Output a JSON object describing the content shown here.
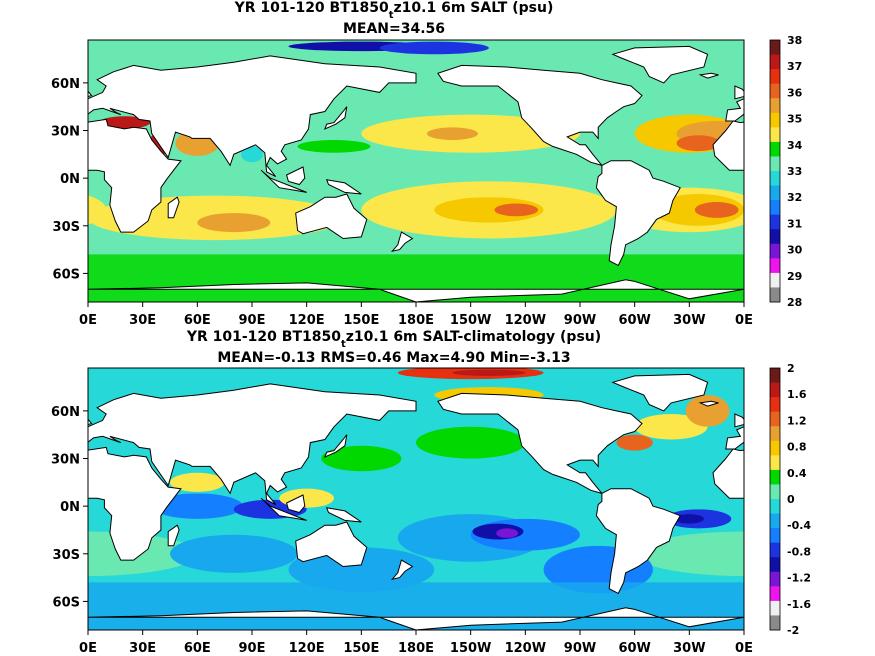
{
  "chart_data": [
    {
      "type": "heatmap",
      "title_prefix": "YR 101-120 BT1850",
      "title_subscript": "t",
      "title_suffix": "z10.1 6m SALT (psu)",
      "stats": "MEAN=34.56",
      "x_ticks": [
        "0E",
        "30E",
        "60E",
        "90E",
        "120E",
        "150E",
        "180E",
        "150W",
        "120W",
        "90W",
        "60W",
        "30W",
        "0E"
      ],
      "y_ticks": [
        "60N",
        "30N",
        "0N",
        "30S",
        "60S"
      ],
      "y_tick_lat": [
        60,
        30,
        0,
        -30,
        -60
      ],
      "xlim": [
        0,
        360
      ],
      "ylim": [
        -78,
        87
      ],
      "colorbar": {
        "labels": [
          "38",
          "37",
          "36",
          "35",
          "34",
          "33",
          "32",
          "31",
          "30",
          "29",
          "28"
        ],
        "colors": [
          "#6b1a1a",
          "#bb1818",
          "#e63010",
          "#e8641e",
          "#e8a030",
          "#f5c800",
          "#fbe74a",
          "#00d800",
          "#6ae8b2",
          "#27d8d8",
          "#18a8ee",
          "#1480ff",
          "#1c34e0",
          "#1010a8",
          "#7a14d6",
          "#ee14ee",
          "#f0f0f0",
          "#8a8a8a"
        ]
      },
      "features": [
        "Atlantic subtropical gyres near 36-37 psu",
        "Mediterranean/Red Sea maxima near 38 psu",
        "Arctic low salinity near 29-30 psu",
        "Southern Ocean near 34 psu"
      ]
    },
    {
      "type": "heatmap",
      "title_prefix": "YR 101-120 BT1850",
      "title_subscript": "t",
      "title_suffix": "z10.1 6m SALT-climatology (psu)",
      "stats": "MEAN=-0.13   RMS=0.46   Max=4.90   Min=-3.13",
      "x_ticks": [
        "0E",
        "30E",
        "60E",
        "90E",
        "120E",
        "150E",
        "180E",
        "150W",
        "120W",
        "90W",
        "60W",
        "30W",
        "0E"
      ],
      "y_ticks": [
        "60N",
        "30N",
        "0N",
        "30S",
        "60S"
      ],
      "y_tick_lat": [
        60,
        30,
        0,
        -30,
        -60
      ],
      "xlim": [
        0,
        360
      ],
      "ylim": [
        -78,
        87
      ],
      "colorbar": {
        "labels": [
          "2",
          "1.6",
          "1.2",
          "0.8",
          "0.4",
          "0",
          "-0.4",
          "-0.8",
          "-1.2",
          "-1.6",
          "-2"
        ],
        "colors": [
          "#6b1a1a",
          "#bb1818",
          "#e63010",
          "#e8641e",
          "#e8a030",
          "#f5c800",
          "#fbe74a",
          "#00d800",
          "#6ae8b2",
          "#27d8d8",
          "#18a8ee",
          "#1480ff",
          "#1c34e0",
          "#1010a8",
          "#7a14d6",
          "#ee14ee",
          "#f0f0f0",
          "#8a8a8a"
        ]
      },
      "features": [
        "Arctic positive anomaly near +2",
        "Eastern tropical Pacific negative anomaly near -1.2",
        "Western boundary currents positive anomalies"
      ]
    }
  ]
}
